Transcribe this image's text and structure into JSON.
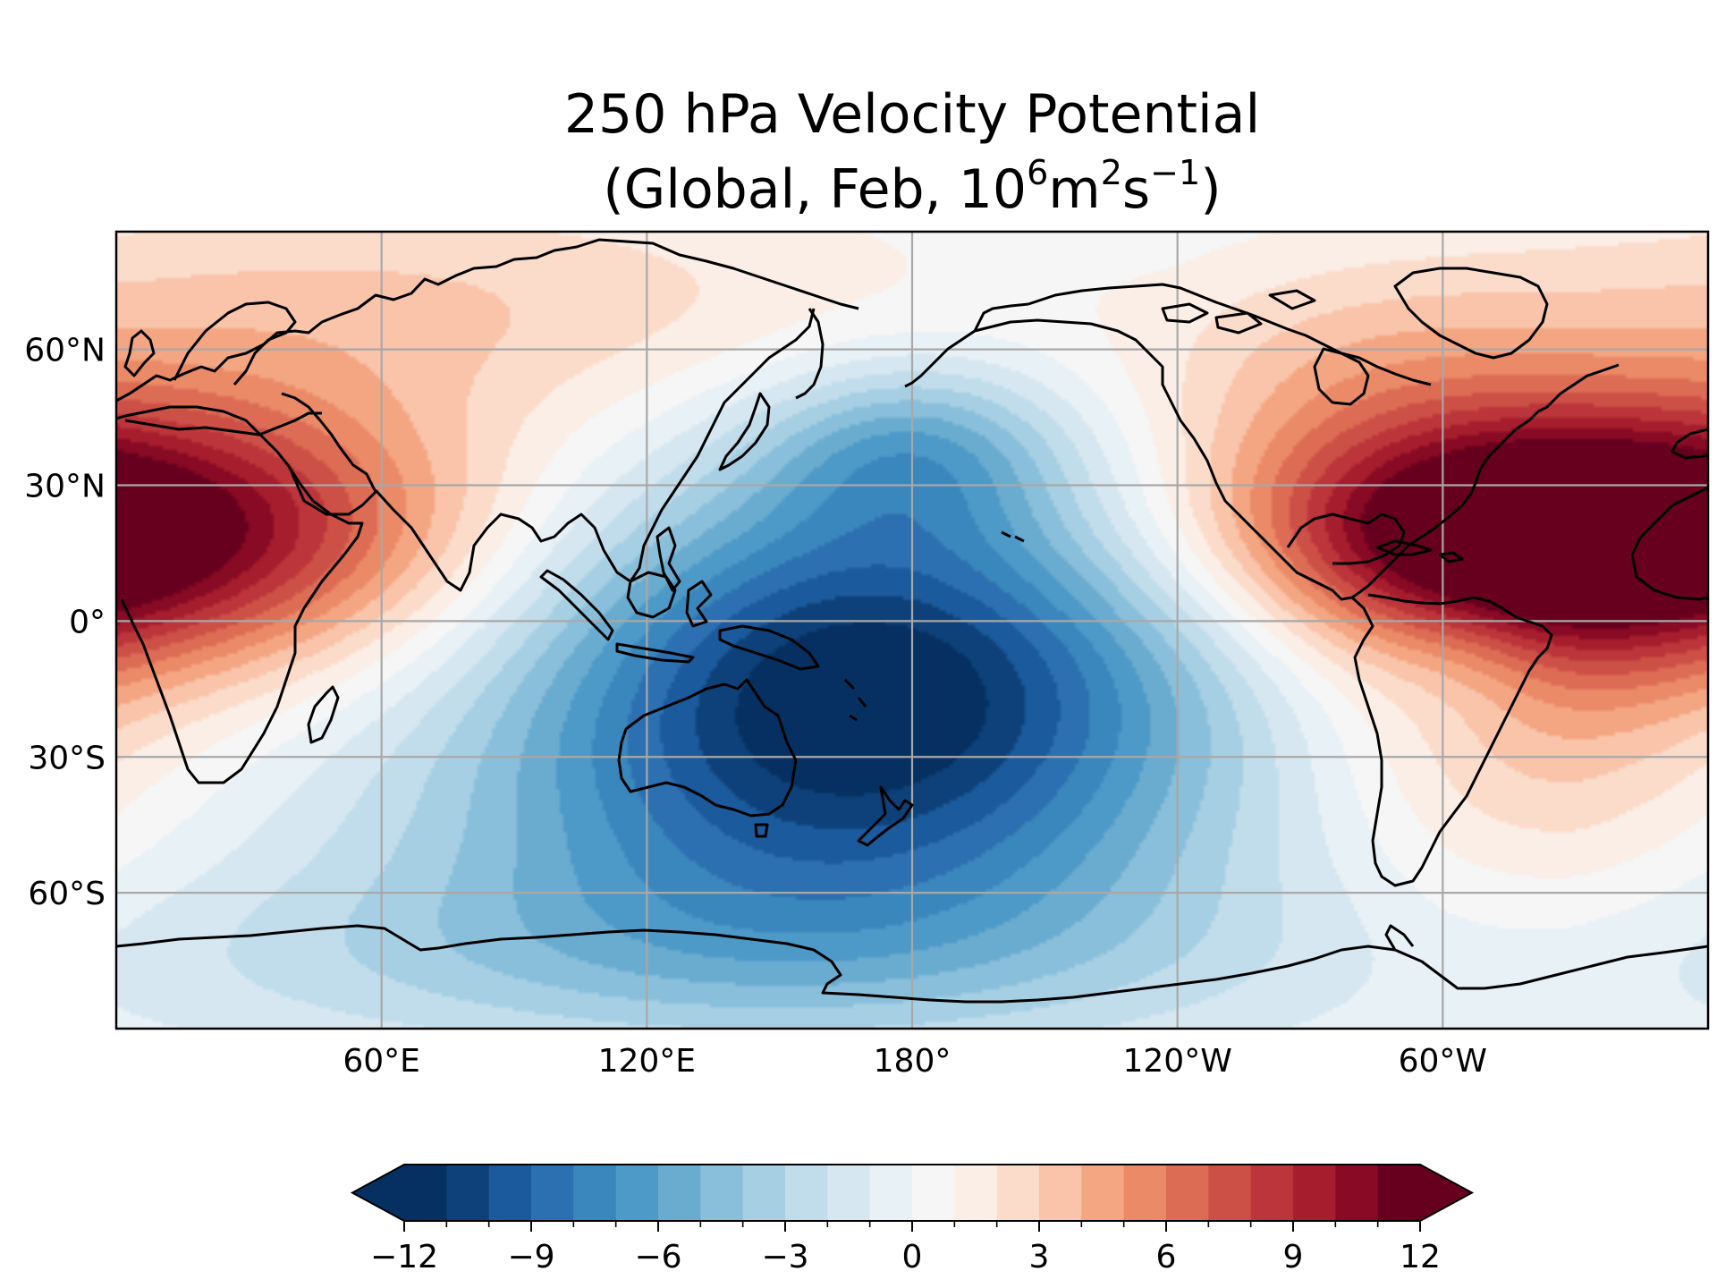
{
  "title": {
    "line1": "250 hPa Velocity Potential",
    "line2_prefix": "(Global, Feb, 10",
    "line2_sup1": "6",
    "line2_mid1": "m",
    "line2_sup2": "2",
    "line2_mid2": "s",
    "line2_sup3": "−1",
    "line2_suffix": ")"
  },
  "map": {
    "projection": "PlateCarree",
    "central_longitude": 180,
    "lat_ticks": [
      {
        "value": 60,
        "label": "60°N"
      },
      {
        "value": 30,
        "label": "30°N"
      },
      {
        "value": 0,
        "label": "0°"
      },
      {
        "value": -30,
        "label": "30°S"
      },
      {
        "value": -60,
        "label": "60°S"
      }
    ],
    "lon_ticks": [
      {
        "value": 60,
        "label": "60°E"
      },
      {
        "value": 120,
        "label": "120°E"
      },
      {
        "value": 180,
        "label": "180°"
      },
      {
        "value": -120,
        "label": "120°W"
      },
      {
        "value": -60,
        "label": "60°W"
      }
    ],
    "gridlines": true,
    "colormap": "RdBu_r",
    "fields": [
      {
        "name": "pacific-low",
        "lon": 170,
        "lat": -12,
        "value": -11.5
      },
      {
        "name": "north-pacific-low",
        "lon": 180,
        "lat": 38,
        "value": -4.5
      },
      {
        "name": "atlantic-high",
        "lon": -50,
        "lat": 20,
        "value": 11
      },
      {
        "name": "africa-arabia-high",
        "lon": 15,
        "lat": 20,
        "value": 9
      },
      {
        "name": "south-america-min",
        "lon": -55,
        "lat": -8,
        "value": -1.5
      }
    ]
  },
  "colorbar": {
    "vmin": -12,
    "vmax": 12,
    "levels": 25,
    "extend": "both",
    "tick_labels": [
      "−12",
      "−9",
      "−6",
      "−3",
      "0",
      "3",
      "6",
      "9",
      "12"
    ],
    "tick_values": [
      -12,
      -9,
      -6,
      -3,
      0,
      3,
      6,
      9,
      12
    ],
    "colors": [
      "#053061",
      "#0e4179",
      "#1b5a9c",
      "#2d70b1",
      "#3a87bd",
      "#4d99c8",
      "#6aacd0",
      "#8abfdb",
      "#a6cfe4",
      "#c1ddec",
      "#d6e7f1",
      "#e8f1f6",
      "#f6f6f6",
      "#fbeee6",
      "#fbdccb",
      "#f9c4a9",
      "#f4a683",
      "#eb8a67",
      "#dd6c55",
      "#cd5046",
      "#bc353a",
      "#a61d2d",
      "#880a24",
      "#67001f"
    ]
  }
}
